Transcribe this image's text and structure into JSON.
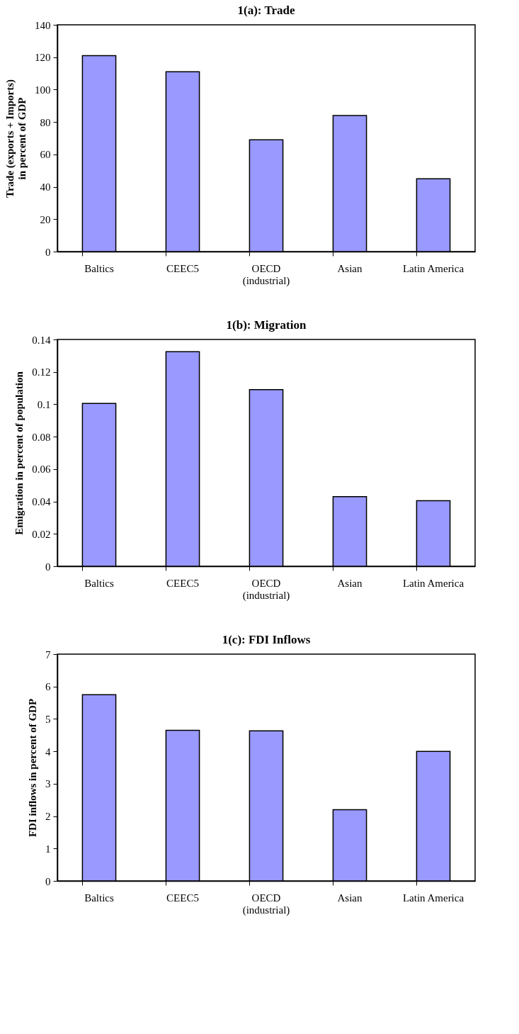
{
  "chart_data": [
    {
      "type": "bar",
      "title": "1(a): Trade",
      "ylabel": "Trade (exports + Imports)\nin percent of GDP",
      "categories": [
        "Baltics",
        "CEEC5",
        "OECD\n(industrial)",
        "Asian",
        "Latin America"
      ],
      "values": [
        121,
        111,
        69,
        84,
        45
      ],
      "color": "#9999ff",
      "ylim": [
        0,
        140
      ],
      "yticks": [
        0,
        20,
        40,
        60,
        80,
        100,
        120,
        140
      ],
      "grid": false
    },
    {
      "type": "bar",
      "title": "1(b): Migration",
      "ylabel": "Emigration in percent of population",
      "categories": [
        "Baltics",
        "CEEC5",
        "OECD\n(industrial)",
        "Asian",
        "Latin America"
      ],
      "values": [
        0.1005,
        0.1325,
        0.109,
        0.043,
        0.0405
      ],
      "color": "#9999ff",
      "ylim": [
        0,
        0.14
      ],
      "yticks": [
        0,
        0.02,
        0.04,
        0.06,
        0.08,
        0.1,
        0.12,
        0.14
      ],
      "grid": false
    },
    {
      "type": "bar",
      "title": "1(c): FDI Inflows",
      "ylabel": "FDI inflows in percent of GDP",
      "categories": [
        "Baltics",
        "CEEC5",
        "OECD\n(industrial)",
        "Asian",
        "Latin America"
      ],
      "values": [
        5.75,
        4.65,
        4.63,
        2.2,
        4.0
      ],
      "color": "#9999ff",
      "ylim": [
        0,
        7
      ],
      "yticks": [
        0,
        1,
        2,
        3,
        4,
        5,
        6,
        7
      ],
      "grid": false
    }
  ]
}
